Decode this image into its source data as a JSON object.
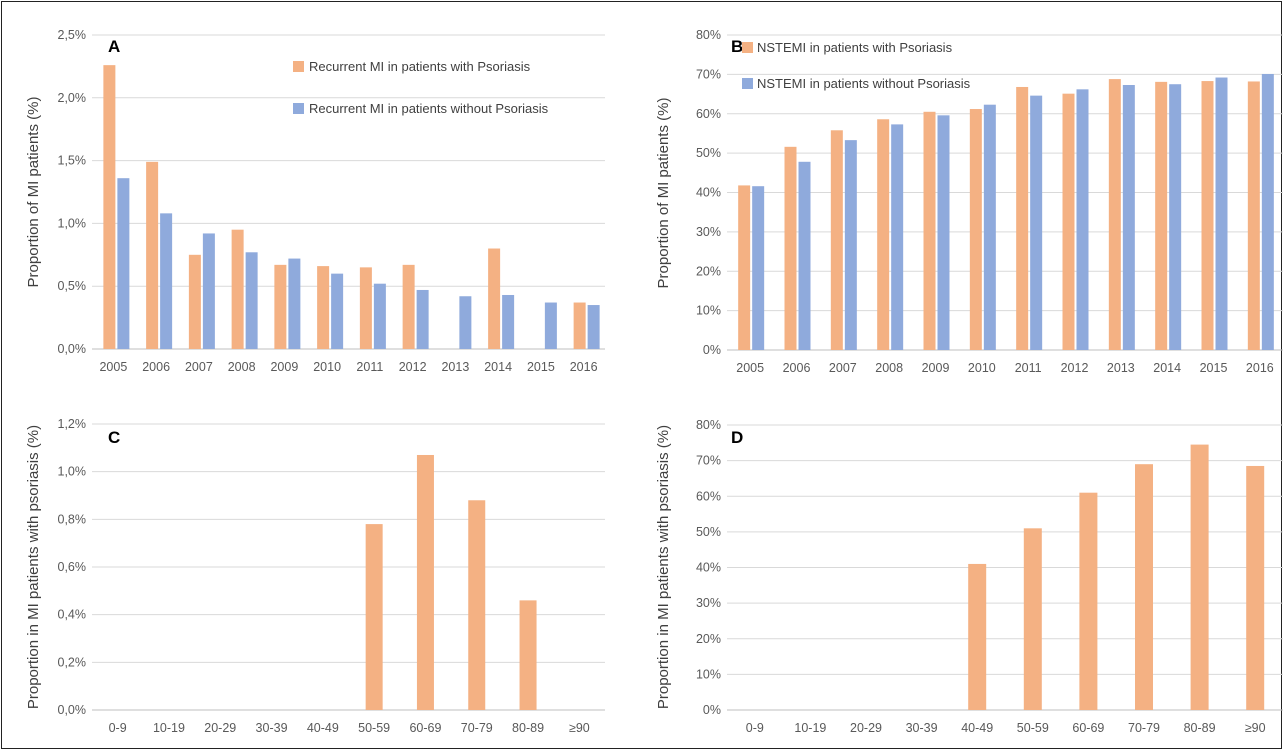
{
  "colors": {
    "psoriasis": "#F4B183",
    "no_psoriasis": "#8FAADC",
    "grid": "#D9D9D9",
    "axis": "#BFBFBF"
  },
  "chart_data": [
    {
      "panel": "A",
      "type": "bar",
      "ylabel": "Proportion of MI patients (%)",
      "ylim": [
        0,
        2.5
      ],
      "yticks": [
        "0,0%",
        "0,5%",
        "1,0%",
        "1,5%",
        "2,0%",
        "2,5%"
      ],
      "categories": [
        "2005",
        "2006",
        "2007",
        "2008",
        "2009",
        "2010",
        "2011",
        "2012",
        "2013",
        "2014",
        "2015",
        "2016"
      ],
      "series": [
        {
          "name": "Recurrent MI in patients with Psoriasis",
          "color_key": "psoriasis",
          "values": [
            2.26,
            1.49,
            0.75,
            0.95,
            0.67,
            0.66,
            0.65,
            0.67,
            0,
            0.8,
            0,
            0.37
          ]
        },
        {
          "name": "Recurrent MI in patients without Psoriasis",
          "color_key": "no_psoriasis",
          "values": [
            1.36,
            1.08,
            0.92,
            0.77,
            0.72,
            0.6,
            0.52,
            0.47,
            0.42,
            0.43,
            0.37,
            0.35
          ]
        }
      ],
      "grid": true,
      "legend": "top-right"
    },
    {
      "panel": "B",
      "type": "bar",
      "ylabel": "Proportion of MI patients (%)",
      "ylim": [
        0,
        80
      ],
      "yticks": [
        "0%",
        "10%",
        "20%",
        "30%",
        "40%",
        "50%",
        "60%",
        "70%",
        "80%"
      ],
      "categories": [
        "2005",
        "2006",
        "2007",
        "2008",
        "2009",
        "2010",
        "2011",
        "2012",
        "2013",
        "2014",
        "2015",
        "2016"
      ],
      "series": [
        {
          "name": "NSTEMI in patients with Psoriasis",
          "color_key": "psoriasis",
          "values": [
            41.8,
            51.6,
            55.8,
            58.6,
            60.5,
            61.2,
            66.8,
            65.1,
            68.8,
            68.1,
            68.3,
            68.2
          ]
        },
        {
          "name": "NSTEMI in patients without Psoriasis",
          "color_key": "no_psoriasis",
          "values": [
            41.6,
            47.8,
            53.3,
            57.3,
            59.6,
            62.3,
            64.6,
            66.2,
            67.3,
            67.5,
            69.2,
            70.1
          ]
        }
      ],
      "grid": true,
      "legend": "top-left"
    },
    {
      "panel": "C",
      "type": "bar",
      "ylabel": "Proportion in MI patients with psoriasis (%)",
      "ylim": [
        0,
        1.2
      ],
      "yticks": [
        "0,0%",
        "0,2%",
        "0,4%",
        "0,6%",
        "0,8%",
        "1,0%",
        "1,2%"
      ],
      "categories": [
        "0-9",
        "10-19",
        "20-29",
        "30-39",
        "40-49",
        "50-59",
        "60-69",
        "70-79",
        "80-89",
        "≥90"
      ],
      "series": [
        {
          "color_key": "psoriasis",
          "values": [
            0,
            0,
            0,
            0,
            0,
            0.78,
            1.07,
            0.88,
            0.46,
            0
          ]
        }
      ],
      "grid": true
    },
    {
      "panel": "D",
      "type": "bar",
      "ylabel": "Proportion in MI patients with psoriasis (%)",
      "ylim": [
        0,
        80
      ],
      "yticks": [
        "0%",
        "10%",
        "20%",
        "30%",
        "40%",
        "50%",
        "60%",
        "70%",
        "80%"
      ],
      "categories": [
        "0-9",
        "10-19",
        "20-29",
        "30-39",
        "40-49",
        "50-59",
        "60-69",
        "70-79",
        "80-89",
        "≥90"
      ],
      "series": [
        {
          "color_key": "psoriasis",
          "values": [
            0,
            0,
            0,
            0,
            41,
            51,
            61,
            69,
            74.5,
            68.5
          ]
        }
      ],
      "grid": true
    }
  ]
}
